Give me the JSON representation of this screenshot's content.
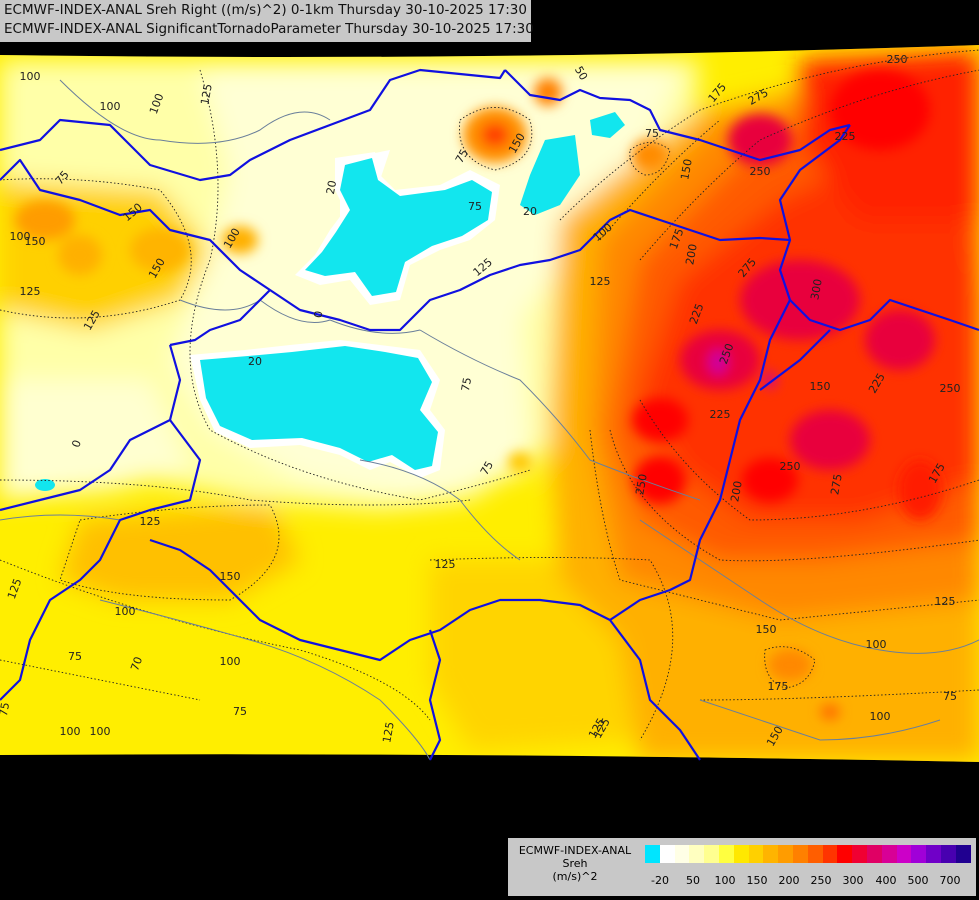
{
  "header": {
    "line1": "ECMWF-INDEX-ANAL Sreh Right ((m/s)^2) 0-1km Thursday 30-10-2025 17:30",
    "line2": "ECMWF-INDEX-ANAL SignificantTornadoParameter Thursday 30-10-2025 17:30"
  },
  "legend": {
    "title_lines": [
      "ECMWF-INDEX-ANAL",
      "Sreh",
      "(m/s)^2"
    ],
    "colors": [
      "#00e5ff",
      "#ffffff",
      "#ffffe6",
      "#ffffc0",
      "#ffff90",
      "#ffff40",
      "#ffe800",
      "#ffd000",
      "#ffb400",
      "#ff9c00",
      "#ff8000",
      "#ff5e00",
      "#ff3400",
      "#ff0000",
      "#f00032",
      "#e00064",
      "#d80096",
      "#cc00c8",
      "#a000d8",
      "#7000c8",
      "#4800b0",
      "#200090"
    ],
    "ticks": [
      "-20",
      "50",
      "100",
      "150",
      "200",
      "250",
      "300",
      "400",
      "500",
      "700"
    ]
  },
  "contour_labels": [
    "100",
    "100",
    "125",
    "100",
    "75",
    "100",
    "150",
    "100",
    "50",
    "75",
    "175",
    "275",
    "250",
    "75",
    "75",
    "150",
    "225",
    "250",
    "150",
    "150",
    "125",
    "125",
    "100",
    "20",
    "20",
    "175",
    "200",
    "275",
    "300",
    "125",
    "125",
    "150",
    "225",
    "250",
    "225",
    "250",
    "150",
    "0",
    "20",
    "75",
    "225",
    "250",
    "0",
    "75",
    "275",
    "200",
    "250",
    "175",
    "125",
    "125",
    "150",
    "125",
    "125",
    "150",
    "100",
    "175",
    "100",
    "100",
    "125",
    "75",
    "70",
    "100",
    "75",
    "125",
    "125",
    "150",
    "100",
    "75",
    "100",
    "75"
  ]
}
